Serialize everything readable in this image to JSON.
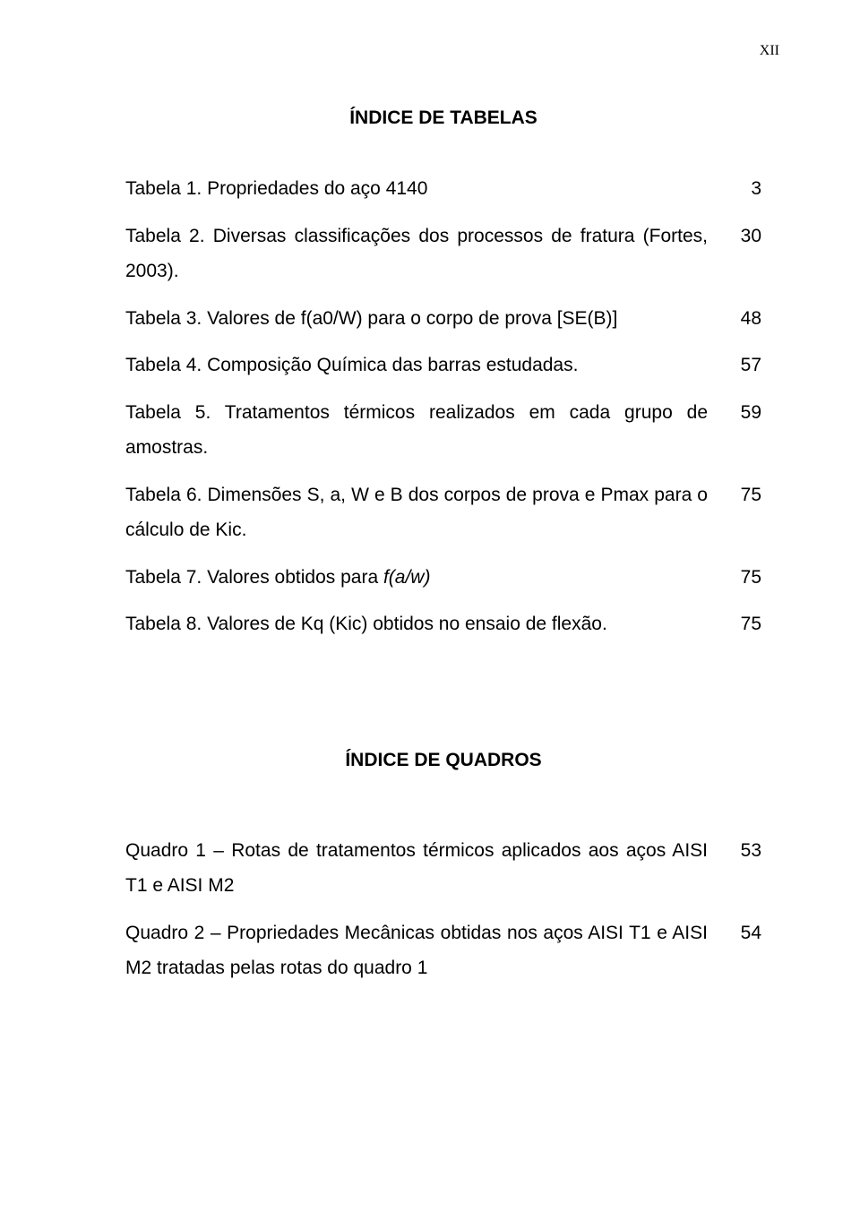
{
  "page_number": "XII",
  "heading1": "ÍNDICE DE TABELAS",
  "heading2": "ÍNDICE DE QUADROS",
  "tables": [
    {
      "text": "Tabela 1. Propriedades do aço 4140",
      "page": "3"
    },
    {
      "text": "Tabela 2. Diversas classificações dos processos de fratura (Fortes, 2003).",
      "page": "30"
    },
    {
      "text": "Tabela 3. Valores de f(a0/W) para o corpo de prova [SE(B)]",
      "page": "48"
    },
    {
      "text": "Tabela 4. Composição Química das barras estudadas.",
      "page": "57"
    },
    {
      "text": "Tabela 5. Tratamentos térmicos realizados em cada grupo de amostras.",
      "page": "59"
    },
    {
      "text_pre": "Tabela 6. Dimensões S, a, W e B dos corpos de prova e Pmax  para o cálculo de Kic.",
      "page": "75"
    },
    {
      "text_pre": "Tabela 7. Valores obtidos para ",
      "text_italic": "f(a/w)",
      "page": "75"
    },
    {
      "text": "Tabela 8. Valores de Kq (Kic) obtidos no ensaio de flexão.",
      "page": "75"
    }
  ],
  "quadros": [
    {
      "text": "Quadro 1 – Rotas de tratamentos térmicos aplicados aos aços AISI T1 e AISI M2",
      "page": "53"
    },
    {
      "text": "Quadro 2 – Propriedades Mecânicas obtidas nos aços AISI T1 e AISI M2 tratadas pelas rotas do quadro 1",
      "page": "54"
    }
  ]
}
